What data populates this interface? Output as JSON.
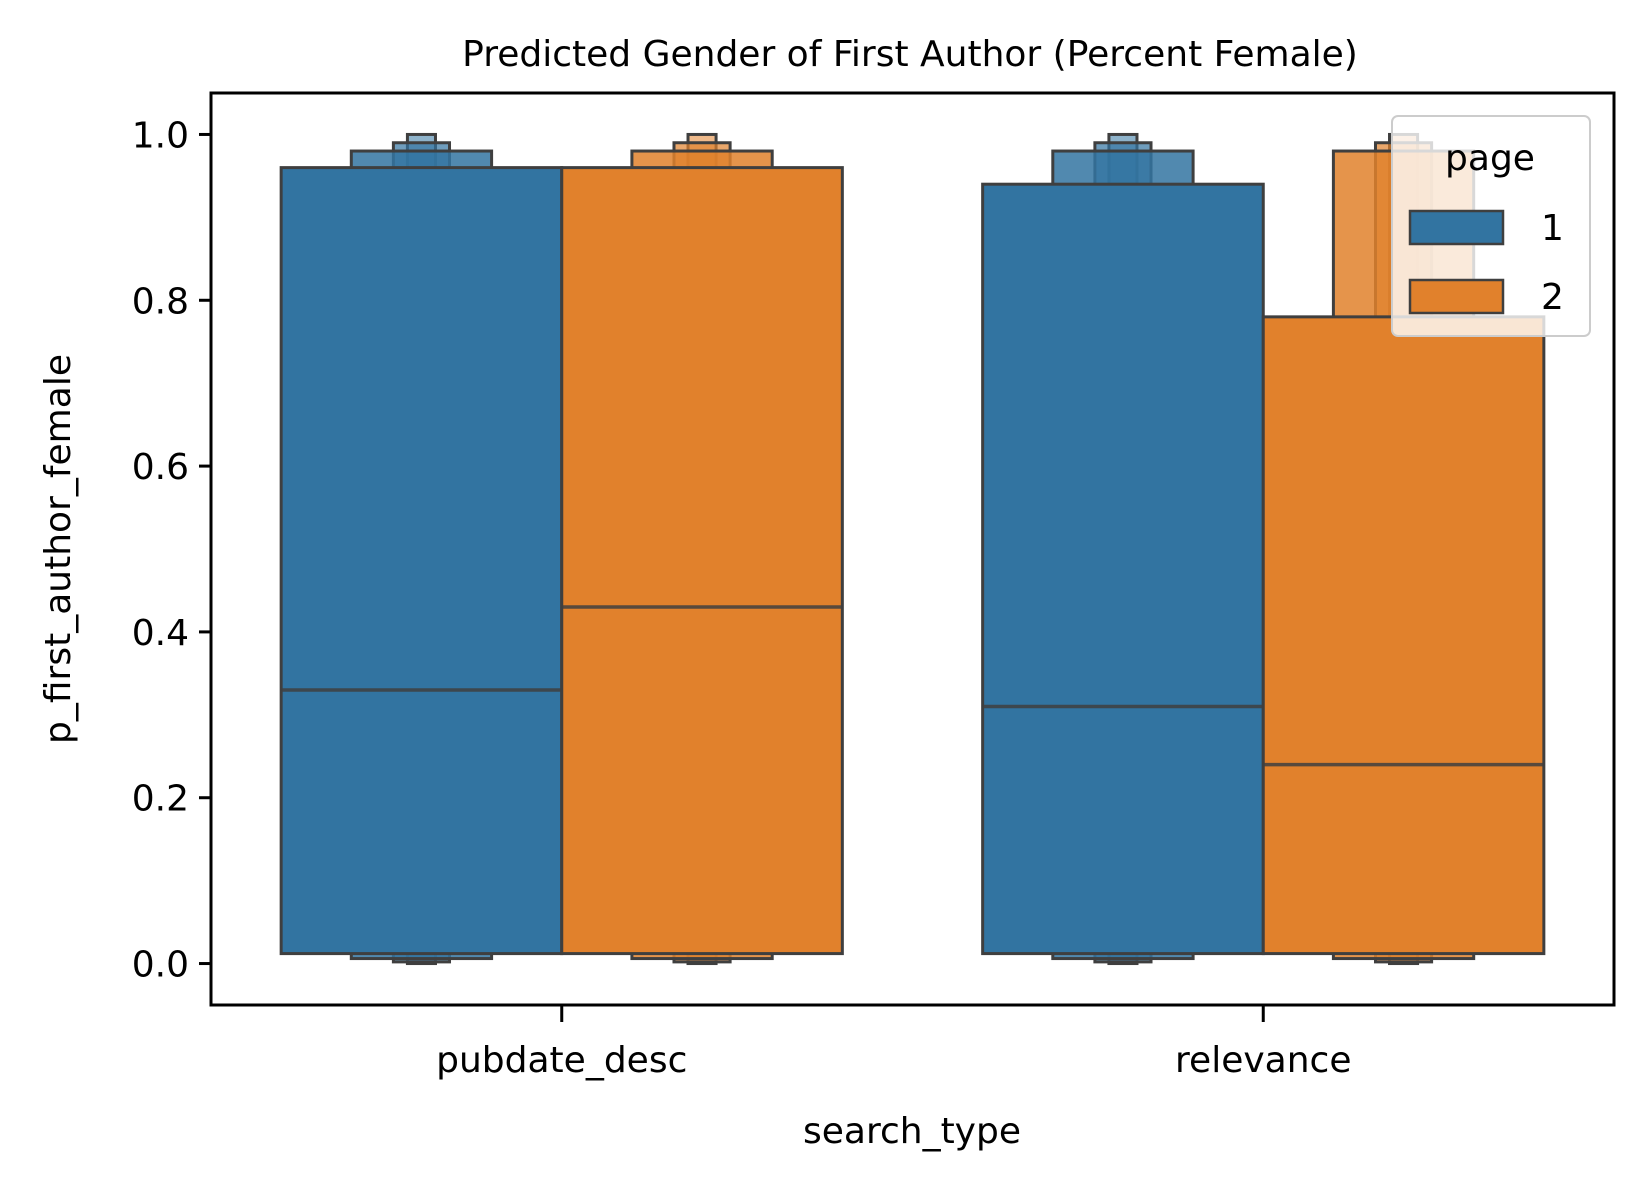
{
  "chart_data": {
    "type": "boxen",
    "title": "Predicted Gender of First Author (Percent Female)",
    "xlabel": "search_type",
    "ylabel": "p_first_author_female",
    "categories": [
      "pubdate_desc",
      "relevance"
    ],
    "ylim": [
      -0.05,
      1.05
    ],
    "yticks": [
      0.0,
      0.2,
      0.4,
      0.6,
      0.8,
      1.0
    ],
    "ytick_labels": [
      "0.0",
      "0.2",
      "0.4",
      "0.6",
      "0.8",
      "1.0"
    ],
    "legend": {
      "title": "page",
      "position": "top-right"
    },
    "series": [
      {
        "name": "1",
        "color": "#3274a1",
        "boxes": [
          {
            "category": "pubdate_desc",
            "median": 0.33,
            "levels": [
              {
                "lo": 0.012,
                "hi": 0.96
              },
              {
                "lo": 0.006,
                "hi": 0.98
              },
              {
                "lo": 0.002,
                "hi": 0.99
              },
              {
                "lo": 0.0,
                "hi": 1.0
              }
            ]
          },
          {
            "category": "relevance",
            "median": 0.31,
            "levels": [
              {
                "lo": 0.012,
                "hi": 0.94
              },
              {
                "lo": 0.006,
                "hi": 0.98
              },
              {
                "lo": 0.002,
                "hi": 0.99
              },
              {
                "lo": 0.0,
                "hi": 1.0
              }
            ]
          }
        ]
      },
      {
        "name": "2",
        "color": "#e1812c",
        "boxes": [
          {
            "category": "pubdate_desc",
            "median": 0.43,
            "levels": [
              {
                "lo": 0.012,
                "hi": 0.96
              },
              {
                "lo": 0.006,
                "hi": 0.98
              },
              {
                "lo": 0.002,
                "hi": 0.99
              },
              {
                "lo": 0.0,
                "hi": 1.0
              }
            ]
          },
          {
            "category": "relevance",
            "median": 0.24,
            "levels": [
              {
                "lo": 0.012,
                "hi": 0.78
              },
              {
                "lo": 0.006,
                "hi": 0.98
              },
              {
                "lo": 0.002,
                "hi": 0.99
              },
              {
                "lo": 0.0,
                "hi": 1.0
              }
            ]
          }
        ]
      }
    ]
  }
}
